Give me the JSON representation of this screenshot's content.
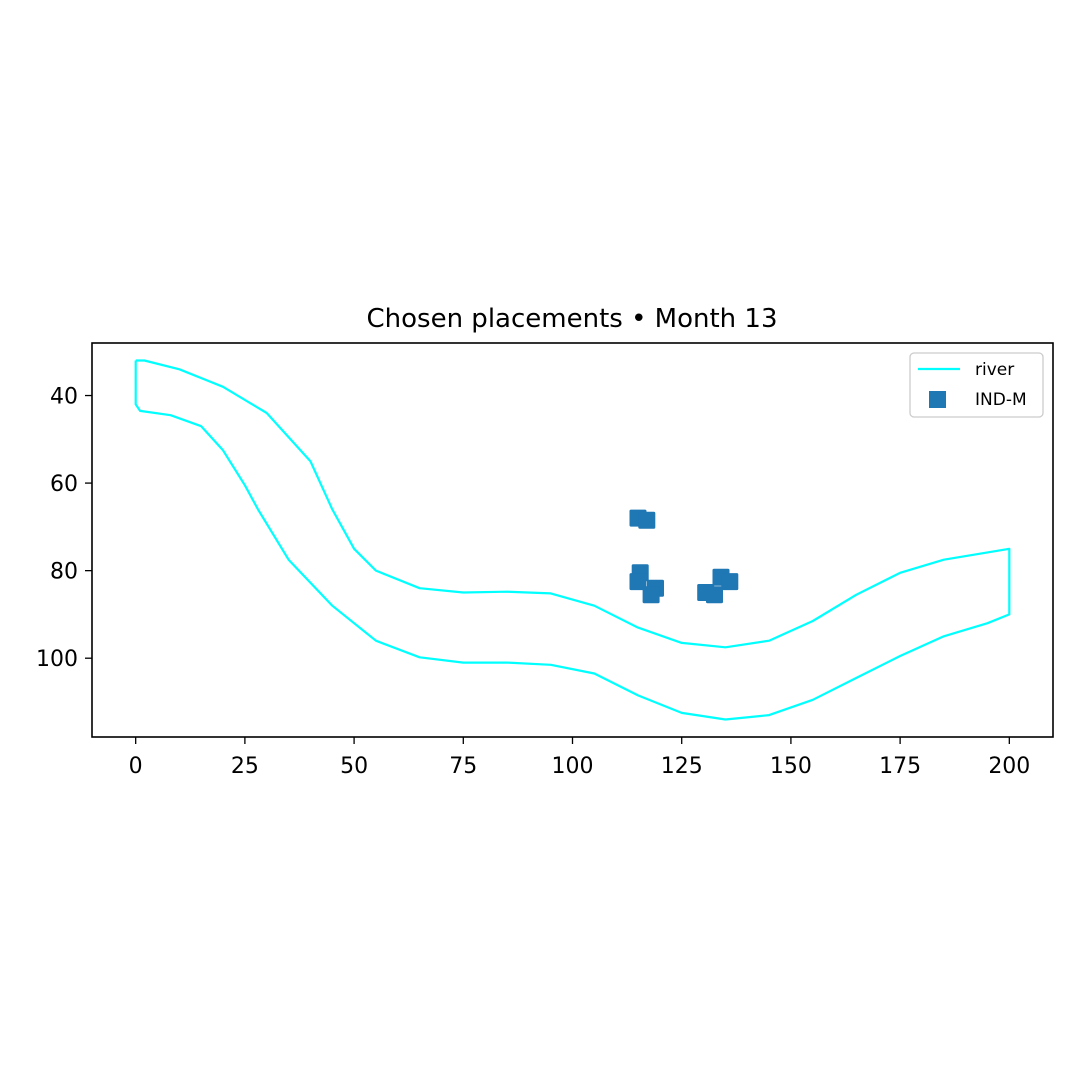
{
  "chart_data": {
    "type": "scatter",
    "title": "Chosen placements • Month 13",
    "xlabel": "",
    "ylabel": "",
    "xlim": [
      -10,
      210
    ],
    "ylim": [
      118,
      28
    ],
    "y_inverted": true,
    "x_ticks": [
      0,
      25,
      50,
      75,
      100,
      125,
      150,
      175,
      200
    ],
    "y_ticks": [
      40,
      60,
      80,
      100
    ],
    "grid": false,
    "legend": {
      "placement": "top-right",
      "entries": [
        "river",
        "IND-M"
      ]
    },
    "colors": {
      "river": "#00ffff",
      "IND-M": "#1f77b4"
    },
    "series": [
      {
        "name": "river",
        "kind": "line",
        "x": [
          0,
          2,
          10,
          20,
          30,
          40,
          45,
          50,
          55,
          65,
          75,
          85,
          95,
          105,
          115,
          125,
          135,
          145,
          155,
          165,
          175,
          185,
          200,
          200,
          195,
          185,
          175,
          165,
          155,
          145,
          135,
          125,
          115,
          105,
          95,
          85,
          75,
          65,
          55,
          45,
          35,
          28,
          25,
          20,
          15,
          8,
          1,
          0,
          0
        ],
        "y": [
          32,
          32,
          34,
          38,
          44,
          55,
          66,
          75,
          80,
          84,
          85,
          84.8,
          85.2,
          88,
          93,
          96.5,
          97.5,
          96,
          91.5,
          85.5,
          80.5,
          77.5,
          75,
          90,
          92,
          95,
          99.5,
          104.5,
          109.5,
          113,
          114,
          112.5,
          108.5,
          103.5,
          101.5,
          101,
          101,
          99.8,
          96,
          88,
          77.5,
          66,
          60.5,
          52.5,
          47,
          44.5,
          43.5,
          42,
          32
        ]
      },
      {
        "name": "IND-M",
        "kind": "scatter",
        "marker": "square",
        "x": [
          115,
          117,
          115.5,
          115,
          119,
          118,
          134,
          136,
          130.5,
          132.5
        ],
        "y": [
          68,
          68.5,
          80.5,
          82.5,
          84,
          85.5,
          81.5,
          82.5,
          85,
          85.5
        ]
      }
    ]
  }
}
